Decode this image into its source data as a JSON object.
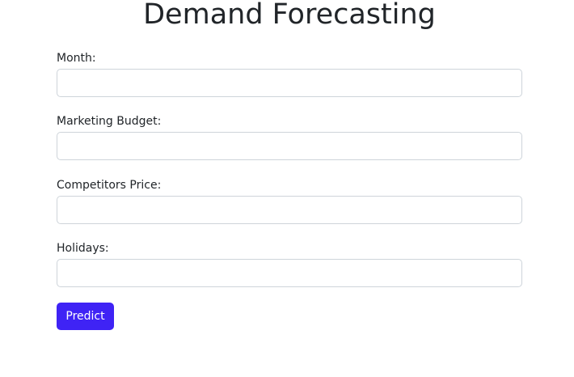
{
  "page": {
    "title": "Demand Forecasting"
  },
  "form": {
    "month": {
      "label": "Month:",
      "value": ""
    },
    "marketing_budget": {
      "label": "Marketing Budget:",
      "value": ""
    },
    "competitors_price": {
      "label": "Competitors Price:",
      "value": ""
    },
    "holidays": {
      "label": "Holidays:",
      "value": ""
    },
    "submit_label": "Predict"
  },
  "colors": {
    "button_background": "#3f23f5",
    "input_border": "#ced4da",
    "text": "#212529"
  }
}
